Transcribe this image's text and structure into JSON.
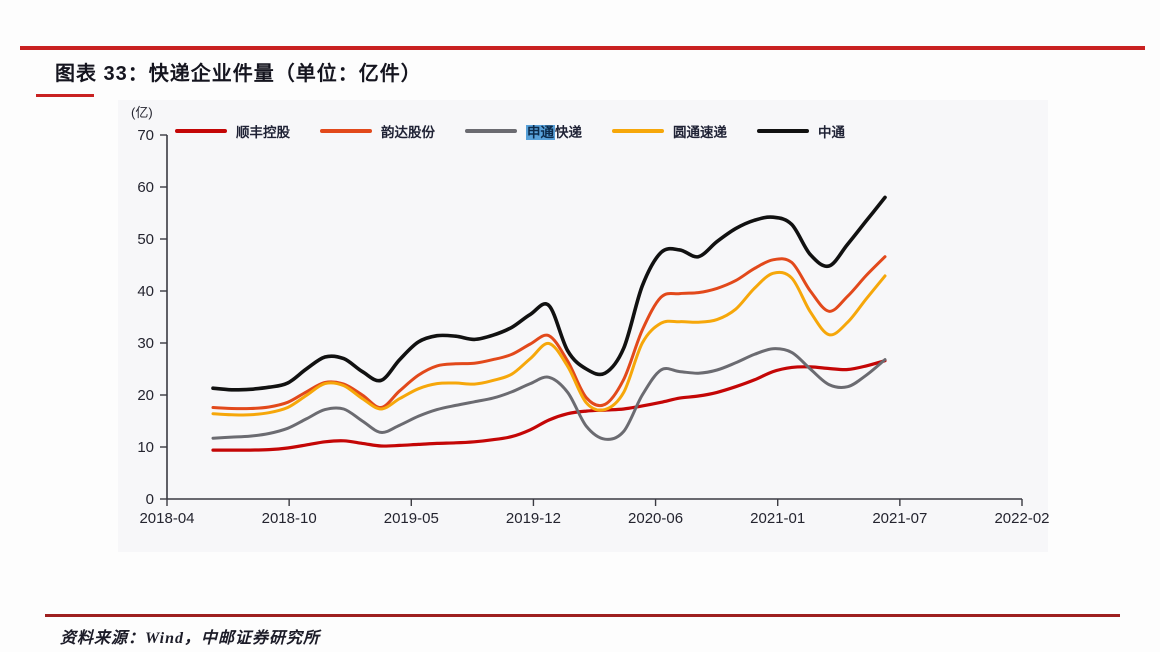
{
  "header": {
    "title": "图表 33：快递企业件量（单位：亿件）"
  },
  "footer": {
    "source": "资料来源：Wind，中邮证券研究所"
  },
  "chart_data": {
    "type": "line",
    "title": "快递企业件量",
    "unit_label": "(亿)",
    "grid": false,
    "legend_position": "top",
    "ylim": [
      0,
      70
    ],
    "y_ticks": [
      0,
      10,
      20,
      30,
      40,
      50,
      60,
      70
    ],
    "x_tick_labels": [
      "2018-04",
      "2018-10",
      "2019-05",
      "2019-12",
      "2020-06",
      "2021-01",
      "2021-07",
      "2022-02"
    ],
    "categories": [
      "2018-06",
      "2018-07",
      "2018-08",
      "2018-09",
      "2018-10",
      "2018-11",
      "2018-12",
      "2019-01",
      "2019-02",
      "2019-03",
      "2019-04",
      "2019-05",
      "2019-06",
      "2019-07",
      "2019-08",
      "2019-09",
      "2019-10",
      "2019-11",
      "2019-12",
      "2020-01",
      "2020-02",
      "2020-03",
      "2020-04",
      "2020-05",
      "2020-06",
      "2020-07",
      "2020-08",
      "2020-09",
      "2020-10",
      "2020-11",
      "2020-12",
      "2021-01",
      "2021-02",
      "2021-03",
      "2021-04",
      "2021-05",
      "2021-06"
    ],
    "series": [
      {
        "id": "sf",
        "name": "顺丰控股",
        "color": "#c40606",
        "width": 3.2,
        "values": [
          9.4,
          9.4,
          9.4,
          9.5,
          9.8,
          10.4,
          11.0,
          11.2,
          10.7,
          10.2,
          10.3,
          10.5,
          10.7,
          10.8,
          11.0,
          11.4,
          12.0,
          13.3,
          15.2,
          16.4,
          16.9,
          17.1,
          17.3,
          17.9,
          18.6,
          19.4,
          19.8,
          20.5,
          21.6,
          22.9,
          24.5,
          25.3,
          25.4,
          25.1,
          24.9,
          25.6,
          26.6
        ]
      },
      {
        "id": "yunda",
        "name": "韵达股份",
        "color": "#e2491b",
        "width": 3.0,
        "values": [
          17.6,
          17.4,
          17.4,
          17.7,
          18.6,
          20.6,
          22.4,
          22.1,
          20.0,
          17.6,
          20.8,
          23.8,
          25.6,
          26.0,
          26.1,
          26.8,
          27.8,
          29.8,
          31.4,
          26.5,
          19.5,
          18.2,
          23.0,
          32.5,
          38.8,
          39.5,
          39.7,
          40.5,
          42.0,
          44.3,
          46.0,
          45.5,
          40.0,
          36.1,
          39.0,
          43.0,
          46.6
        ]
      },
      {
        "id": "sto",
        "name": "申通快递",
        "color": "#6b6b71",
        "width": 3.0,
        "highlight": {
          "text": "申通",
          "rest": "快递",
          "color": "#58a0d8"
        },
        "values": [
          11.7,
          11.9,
          12.1,
          12.6,
          13.6,
          15.4,
          17.2,
          17.3,
          15.0,
          12.8,
          14.2,
          15.9,
          17.2,
          18.0,
          18.7,
          19.4,
          20.6,
          22.2,
          23.4,
          20.5,
          14.0,
          11.5,
          13.0,
          20.0,
          24.8,
          24.5,
          24.2,
          24.8,
          26.2,
          27.8,
          28.9,
          28.2,
          25.0,
          22.0,
          21.6,
          23.8,
          26.8
        ]
      },
      {
        "id": "yto",
        "name": "圆通速递",
        "color": "#f6a70a",
        "width": 3.0,
        "values": [
          16.4,
          16.2,
          16.2,
          16.6,
          17.6,
          19.9,
          22.2,
          21.8,
          19.3,
          17.3,
          19.3,
          21.2,
          22.2,
          22.3,
          22.1,
          22.8,
          24.0,
          27.0,
          29.9,
          25.5,
          18.5,
          17.2,
          20.5,
          30.0,
          33.8,
          34.1,
          34.0,
          34.5,
          36.5,
          40.5,
          43.4,
          42.5,
          36.0,
          31.6,
          34.0,
          38.5,
          42.9
        ]
      },
      {
        "id": "zto",
        "name": "中通",
        "color": "#111111",
        "width": 3.6,
        "values": [
          21.3,
          21.0,
          21.1,
          21.5,
          22.3,
          25.0,
          27.3,
          27.0,
          24.5,
          22.8,
          26.8,
          30.2,
          31.4,
          31.3,
          30.7,
          31.5,
          33.0,
          35.5,
          37.2,
          28.5,
          25.0,
          24.2,
          29.0,
          41.0,
          47.4,
          47.9,
          46.6,
          49.5,
          52.0,
          53.6,
          54.2,
          52.8,
          47.0,
          44.8,
          49.0,
          53.5,
          58.0
        ]
      }
    ]
  },
  "rules": {
    "top_rule_color": "#c92121",
    "bottom_rule_color": "#9e2020"
  }
}
